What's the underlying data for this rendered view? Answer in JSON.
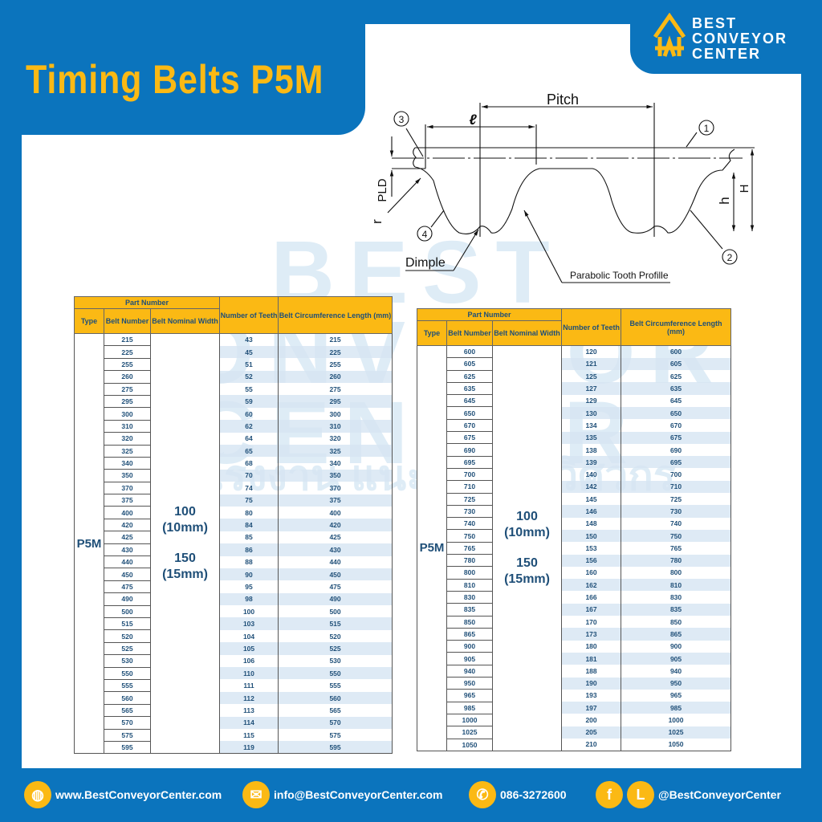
{
  "header": {
    "title": "Timing Belts P5M"
  },
  "logo": {
    "line1": "BEST",
    "line2": "CONVEYOR",
    "line3": "CENTER"
  },
  "watermark": {
    "brand": "BEST CONVEYOR CENTER",
    "thai": "สินค้าโรงงาน แนะนำโดยวิศวกร"
  },
  "diagram": {
    "pitch": "Pitch",
    "l": "ℓ",
    "pld": "PLD",
    "r": "r",
    "h": "h",
    "H": "H",
    "dimple": "Dimple",
    "profile": "Parabolic Tooth Profille",
    "callouts": [
      "1",
      "2",
      "3",
      "4"
    ]
  },
  "table_headers": {
    "part_number": "Part Number",
    "type": "Type",
    "belt_number": "Belt Number",
    "nominal_width": "Belt Nominal Width",
    "teeth": "Number of Teeth",
    "circumference": "Belt Circumference Length (mm)"
  },
  "type": "P5M",
  "widths": {
    "w1": "100",
    "w1_mm": "(10mm)",
    "w2": "150",
    "w2_mm": "(15mm)"
  },
  "table_left": {
    "rows": [
      [
        "215",
        "43",
        "215"
      ],
      [
        "225",
        "45",
        "225"
      ],
      [
        "255",
        "51",
        "255"
      ],
      [
        "260",
        "52",
        "260"
      ],
      [
        "275",
        "55",
        "275"
      ],
      [
        "295",
        "59",
        "295"
      ],
      [
        "300",
        "60",
        "300"
      ],
      [
        "310",
        "62",
        "310"
      ],
      [
        "320",
        "64",
        "320"
      ],
      [
        "325",
        "65",
        "325"
      ],
      [
        "340",
        "68",
        "340"
      ],
      [
        "350",
        "70",
        "350"
      ],
      [
        "370",
        "74",
        "370"
      ],
      [
        "375",
        "75",
        "375"
      ],
      [
        "400",
        "80",
        "400"
      ],
      [
        "420",
        "84",
        "420"
      ],
      [
        "425",
        "85",
        "425"
      ],
      [
        "430",
        "86",
        "430"
      ],
      [
        "440",
        "88",
        "440"
      ],
      [
        "450",
        "90",
        "450"
      ],
      [
        "475",
        "95",
        "475"
      ],
      [
        "490",
        "98",
        "490"
      ],
      [
        "500",
        "100",
        "500"
      ],
      [
        "515",
        "103",
        "515"
      ],
      [
        "520",
        "104",
        "520"
      ],
      [
        "525",
        "105",
        "525"
      ],
      [
        "530",
        "106",
        "530"
      ],
      [
        "550",
        "110",
        "550"
      ],
      [
        "555",
        "111",
        "555"
      ],
      [
        "560",
        "112",
        "560"
      ],
      [
        "565",
        "113",
        "565"
      ],
      [
        "570",
        "114",
        "570"
      ],
      [
        "575",
        "115",
        "575"
      ],
      [
        "595",
        "119",
        "595"
      ]
    ]
  },
  "table_right": {
    "rows": [
      [
        "600",
        "120",
        "600"
      ],
      [
        "605",
        "121",
        "605"
      ],
      [
        "625",
        "125",
        "625"
      ],
      [
        "635",
        "127",
        "635"
      ],
      [
        "645",
        "129",
        "645"
      ],
      [
        "650",
        "130",
        "650"
      ],
      [
        "670",
        "134",
        "670"
      ],
      [
        "675",
        "135",
        "675"
      ],
      [
        "690",
        "138",
        "690"
      ],
      [
        "695",
        "139",
        "695"
      ],
      [
        "700",
        "140",
        "700"
      ],
      [
        "710",
        "142",
        "710"
      ],
      [
        "725",
        "145",
        "725"
      ],
      [
        "730",
        "146",
        "730"
      ],
      [
        "740",
        "148",
        "740"
      ],
      [
        "750",
        "150",
        "750"
      ],
      [
        "765",
        "153",
        "765"
      ],
      [
        "780",
        "156",
        "780"
      ],
      [
        "800",
        "160",
        "800"
      ],
      [
        "810",
        "162",
        "810"
      ],
      [
        "830",
        "166",
        "830"
      ],
      [
        "835",
        "167",
        "835"
      ],
      [
        "850",
        "170",
        "850"
      ],
      [
        "865",
        "173",
        "865"
      ],
      [
        "900",
        "180",
        "900"
      ],
      [
        "905",
        "181",
        "905"
      ],
      [
        "940",
        "188",
        "940"
      ],
      [
        "950",
        "190",
        "950"
      ],
      [
        "965",
        "193",
        "965"
      ],
      [
        "985",
        "197",
        "985"
      ],
      [
        "1000",
        "200",
        "1000"
      ],
      [
        "1025",
        "205",
        "1025"
      ],
      [
        "1050",
        "210",
        "1050"
      ]
    ]
  },
  "footer": {
    "website": "www.BestConveyorCenter.com",
    "email": "info@BestConveyorCenter.com",
    "phone": "086-3272600",
    "facebook_glyph": "f",
    "line_glyph": "L",
    "social": "@BestConveyorCenter"
  },
  "colors": {
    "brand_blue": "#0b74bd",
    "accent_yellow": "#fbb914",
    "text_navy": "#1f4f78"
  }
}
